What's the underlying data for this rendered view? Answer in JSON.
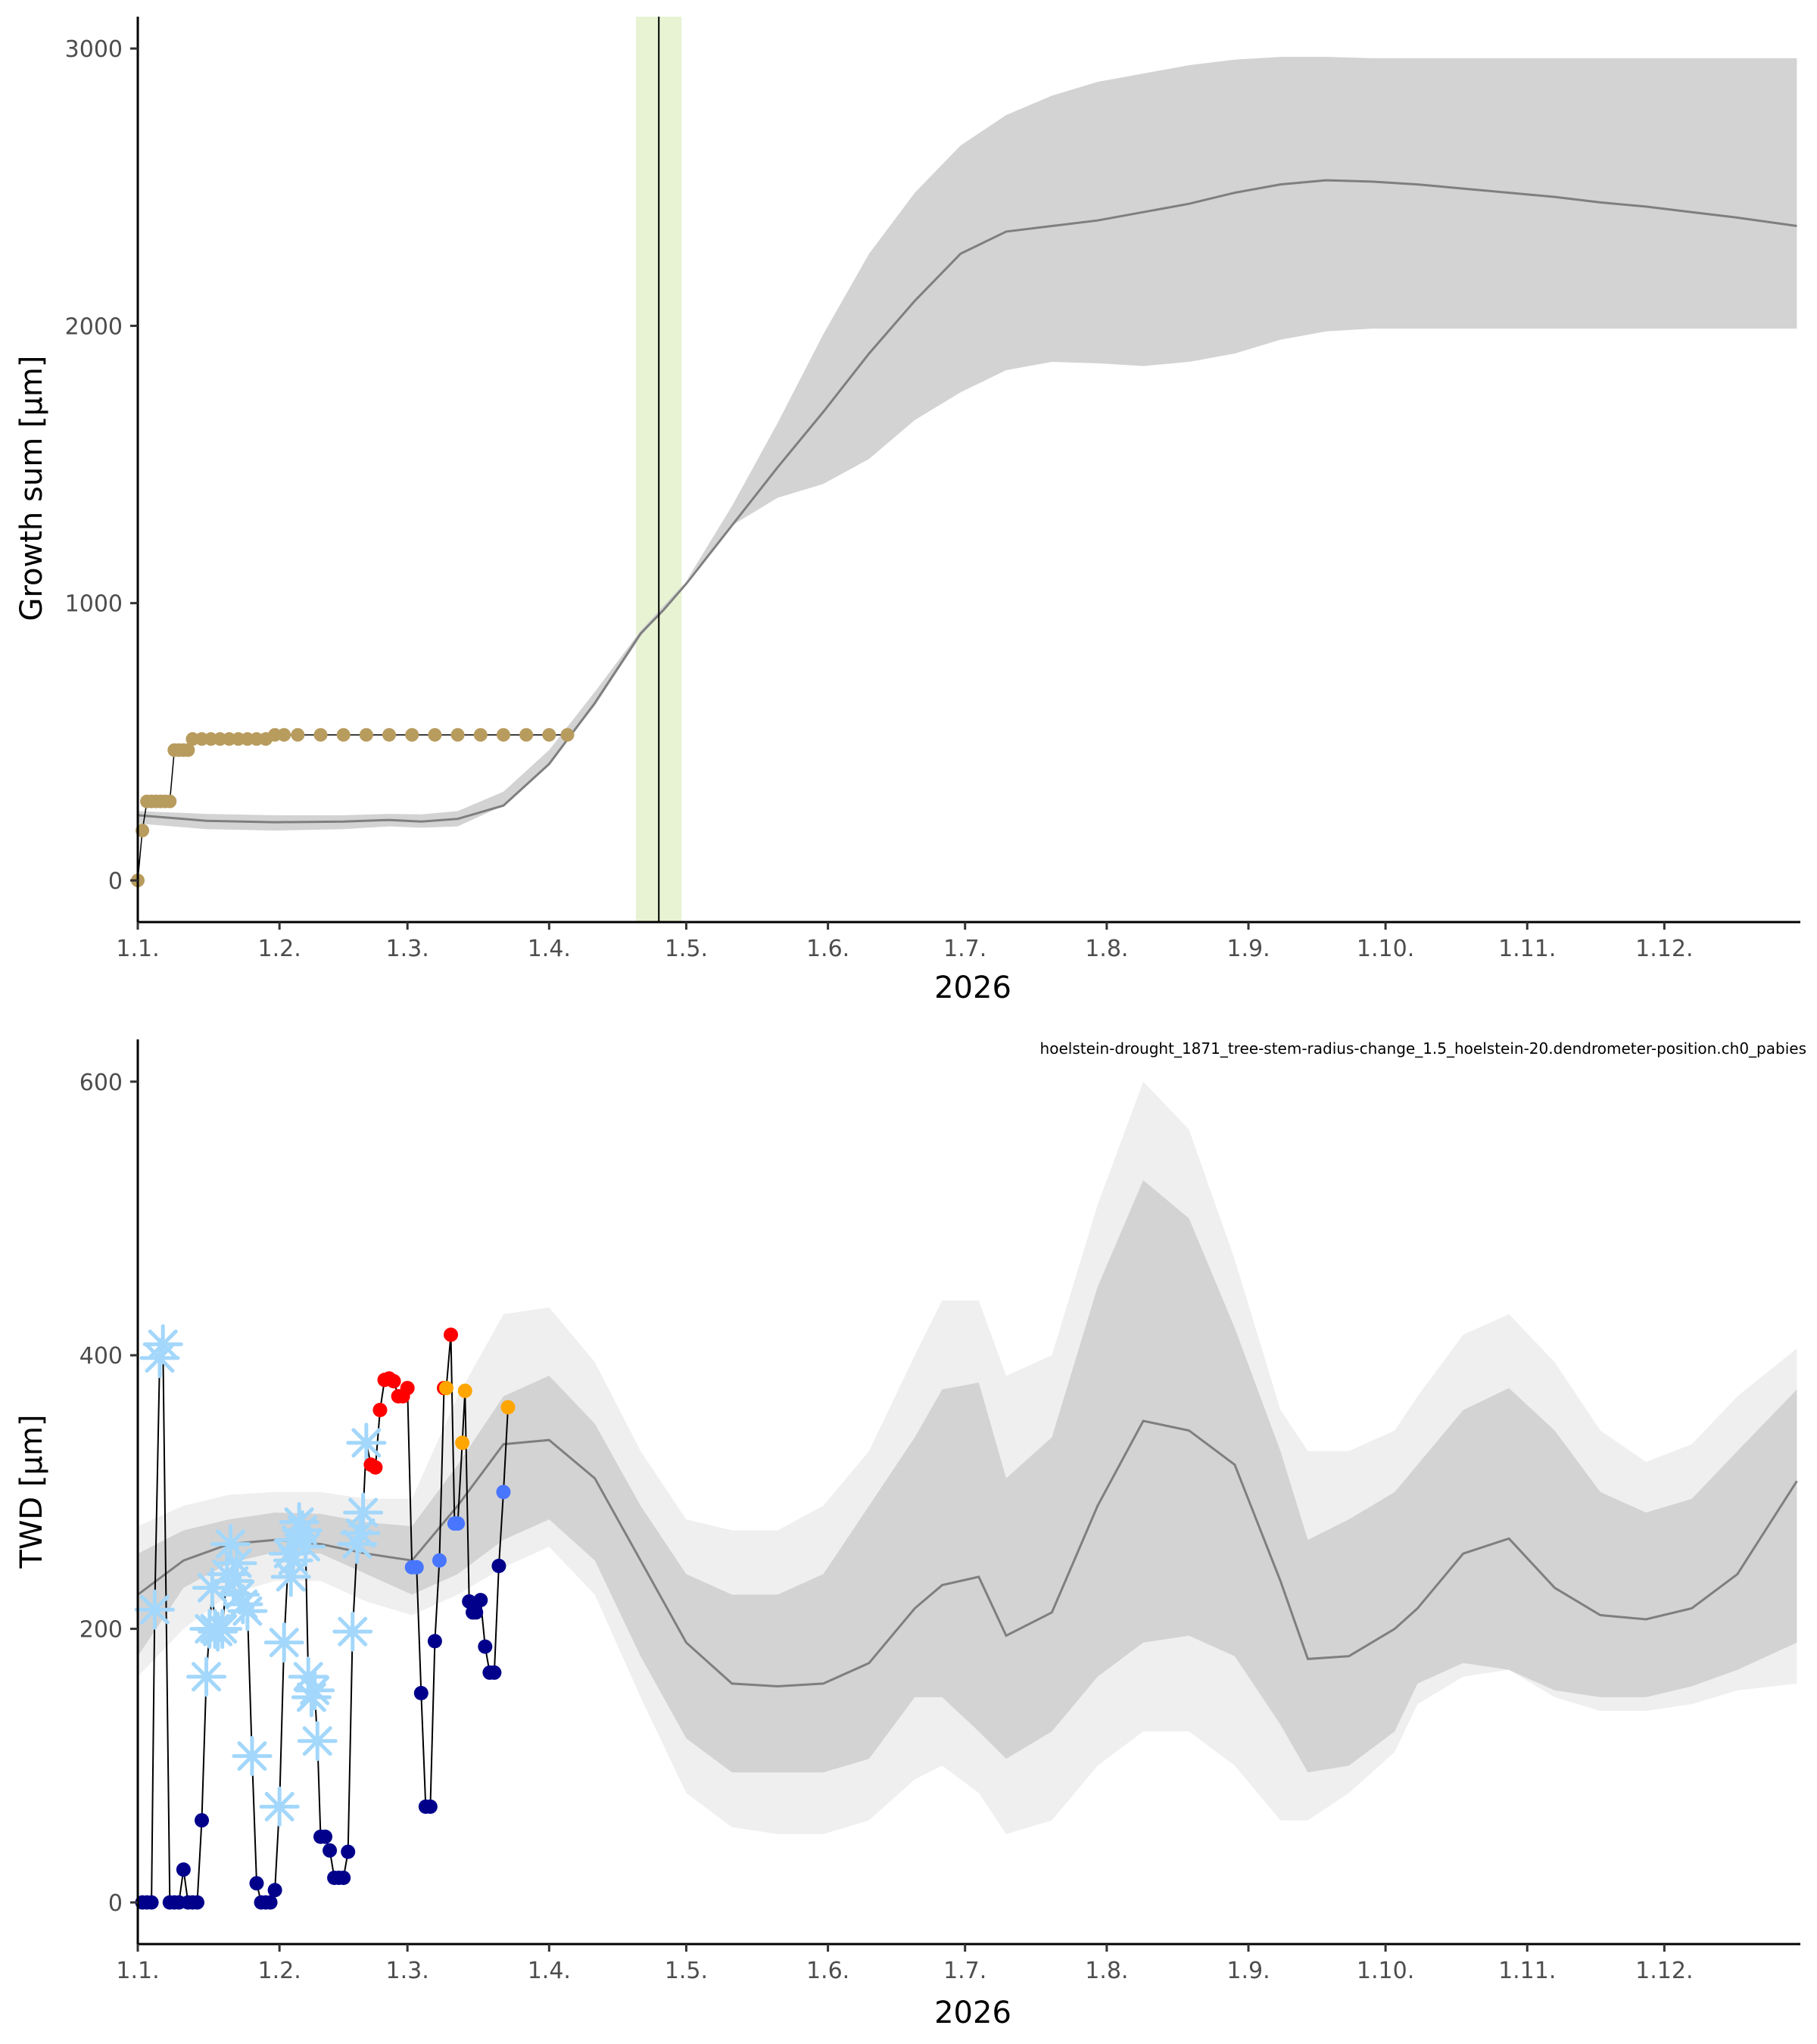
{
  "colors": {
    "growth_band": "#d3d3d3",
    "median_line": "#7f7f7f",
    "growth_points": "#b89c5e",
    "season_band": "#e8f3d4",
    "twd_outer_band": "#efefef",
    "twd_inner_band": "#d3d3d3",
    "frost": "#a3d7fb",
    "navy": "#00008b",
    "blue": "#4876ff",
    "red": "#ff0000",
    "orange": "#ffa500"
  },
  "chart_data": [
    {
      "type": "line",
      "title": "",
      "xlabel": "2026",
      "ylabel": "Growth sum [µm]",
      "x_unit": "day of year",
      "xlim": [
        0,
        363
      ],
      "ylim": [
        -140,
        3110
      ],
      "yticks": [
        0,
        1000,
        2000,
        3000
      ],
      "ytick_labels": [
        "0",
        "1000",
        "2000",
        "3000"
      ],
      "xticks": [
        0,
        31,
        59,
        90,
        120,
        151,
        181,
        212,
        243,
        273,
        304,
        334
      ],
      "xtick_labels": [
        "1.1.",
        "1.2.",
        "1.3.",
        "1.4.",
        "1.5.",
        "1.6.",
        "1.7.",
        "1.8.",
        "1.9.",
        "1.10.",
        "1.11.",
        "1.12."
      ],
      "grid": false,
      "highlight_band": {
        "x_from": 109,
        "x_to": 119
      },
      "marker_line_x": 114,
      "envelope": {
        "x": [
          0,
          15,
          30,
          45,
          55,
          62,
          70,
          80,
          90,
          100,
          110,
          115,
          120,
          130,
          140,
          150,
          160,
          170,
          180,
          190,
          200,
          210,
          220,
          230,
          240,
          250,
          260,
          270,
          280,
          290,
          300,
          310,
          320,
          330,
          340,
          350,
          363
        ],
        "lower": [
          205,
          185,
          180,
          185,
          195,
          190,
          195,
          270,
          420,
          630,
          880,
          980,
          1080,
          1280,
          1380,
          1430,
          1520,
          1660,
          1760,
          1840,
          1870,
          1865,
          1855,
          1870,
          1900,
          1950,
          1980,
          1990,
          1990,
          1990,
          1990,
          1990,
          1990,
          1990,
          1990,
          1990,
          1990
        ],
        "median": [
          235,
          215,
          210,
          212,
          218,
          212,
          222,
          270,
          420,
          640,
          890,
          975,
          1070,
          1280,
          1490,
          1690,
          1900,
          2090,
          2260,
          2340,
          2360,
          2380,
          2410,
          2440,
          2480,
          2510,
          2525,
          2520,
          2510,
          2495,
          2480,
          2465,
          2445,
          2430,
          2410,
          2390,
          2360
        ],
        "upper": [
          250,
          240,
          235,
          235,
          240,
          238,
          250,
          320,
          470,
          680,
          900,
          990,
          1080,
          1350,
          1650,
          1970,
          2260,
          2480,
          2650,
          2760,
          2830,
          2880,
          2910,
          2940,
          2960,
          2970,
          2970,
          2965,
          2965,
          2965,
          2965,
          2965,
          2965,
          2965,
          2965,
          2965,
          2965
        ]
      },
      "series": [
        {
          "name": "growth_sum",
          "points": [
            [
              0,
              0
            ],
            [
              1,
              180
            ],
            [
              2,
              285
            ],
            [
              3,
              285
            ],
            [
              4,
              285
            ],
            [
              5,
              285
            ],
            [
              6,
              285
            ],
            [
              7,
              285
            ],
            [
              8,
              470
            ],
            [
              9,
              470
            ],
            [
              10,
              470
            ],
            [
              11,
              470
            ],
            [
              12,
              510
            ],
            [
              14,
              510
            ],
            [
              16,
              510
            ],
            [
              18,
              510
            ],
            [
              20,
              510
            ],
            [
              22,
              510
            ],
            [
              24,
              510
            ],
            [
              26,
              510
            ],
            [
              28,
              510
            ],
            [
              30,
              525
            ],
            [
              32,
              525
            ],
            [
              35,
              525
            ],
            [
              40,
              525
            ],
            [
              45,
              525
            ],
            [
              50,
              525
            ],
            [
              55,
              525
            ],
            [
              60,
              525
            ],
            [
              65,
              525
            ],
            [
              70,
              525
            ],
            [
              75,
              525
            ],
            [
              80,
              525
            ],
            [
              85,
              525
            ],
            [
              90,
              525
            ],
            [
              94,
              525
            ]
          ]
        }
      ]
    },
    {
      "type": "line",
      "title": "",
      "annotation": "hoelstein-drought_1871_tree-stem-radius-change_1.5_hoelstein-20.dendrometer-position.ch0_pabies",
      "xlabel": "2026",
      "ylabel": "TWD [µm]",
      "x_unit": "day of year",
      "xlim": [
        0,
        363
      ],
      "ylim": [
        -30,
        630
      ],
      "yticks": [
        0,
        200,
        400,
        600
      ],
      "ytick_labels": [
        "0",
        "200",
        "400",
        "600"
      ],
      "xticks": [
        0,
        31,
        59,
        90,
        120,
        151,
        181,
        212,
        243,
        273,
        304,
        334
      ],
      "xtick_labels": [
        "1.1.",
        "1.2.",
        "1.3.",
        "1.4.",
        "1.5.",
        "1.6.",
        "1.7.",
        "1.8.",
        "1.9.",
        "1.10.",
        "1.11.",
        "1.12."
      ],
      "grid": false,
      "envelope": {
        "x": [
          0,
          10,
          20,
          30,
          40,
          50,
          60,
          70,
          80,
          90,
          100,
          110,
          120,
          130,
          140,
          150,
          160,
          170,
          176,
          184,
          190,
          200,
          210,
          220,
          230,
          240,
          250,
          256,
          265,
          275,
          280,
          290,
          300,
          310,
          320,
          330,
          340,
          350,
          363
        ],
        "outer_lower": [
          165,
          200,
          225,
          235,
          235,
          220,
          210,
          225,
          245,
          260,
          225,
          150,
          80,
          55,
          50,
          50,
          60,
          90,
          100,
          80,
          50,
          60,
          100,
          125,
          125,
          100,
          60,
          60,
          80,
          110,
          145,
          165,
          170,
          150,
          140,
          140,
          145,
          155,
          160
        ],
        "inner_lower": [
          180,
          230,
          248,
          256,
          255,
          240,
          225,
          240,
          265,
          280,
          250,
          180,
          120,
          95,
          95,
          95,
          105,
          150,
          150,
          125,
          105,
          125,
          165,
          190,
          195,
          180,
          130,
          95,
          100,
          125,
          160,
          175,
          170,
          155,
          150,
          150,
          158,
          170,
          190
        ],
        "median": [
          225,
          250,
          262,
          265,
          262,
          255,
          250,
          290,
          335,
          338,
          310,
          250,
          190,
          160,
          158,
          160,
          175,
          215,
          232,
          238,
          195,
          212,
          290,
          352,
          345,
          320,
          235,
          178,
          180,
          200,
          215,
          255,
          266,
          230,
          210,
          207,
          215,
          240,
          308
        ],
        "inner_upper": [
          255,
          272,
          280,
          285,
          284,
          278,
          275,
          320,
          370,
          385,
          350,
          290,
          240,
          225,
          225,
          240,
          290,
          340,
          375,
          380,
          310,
          340,
          450,
          528,
          500,
          420,
          330,
          265,
          280,
          300,
          320,
          360,
          376,
          345,
          300,
          285,
          295,
          330,
          375
        ],
        "outer_upper": [
          275,
          290,
          298,
          300,
          300,
          295,
          295,
          370,
          430,
          435,
          395,
          330,
          280,
          272,
          272,
          290,
          330,
          400,
          440,
          440,
          385,
          400,
          510,
          600,
          565,
          470,
          360,
          330,
          330,
          345,
          370,
          415,
          430,
          395,
          345,
          322,
          335,
          370,
          405
        ]
      },
      "series": [
        {
          "name": "twd",
          "points": [
            [
              1,
              0,
              "navy"
            ],
            [
              2,
              0,
              "navy"
            ],
            [
              3,
              0,
              "navy"
            ],
            [
              3.7,
              214,
              "frost"
            ],
            [
              4.8,
              398,
              "frost"
            ],
            [
              5.5,
              408,
              "frost"
            ],
            [
              7,
              0,
              "navy"
            ],
            [
              8,
              0,
              "navy"
            ],
            [
              9,
              0,
              "navy"
            ],
            [
              10,
              24,
              "navy"
            ],
            [
              11,
              0,
              "navy"
            ],
            [
              12,
              0,
              "navy"
            ],
            [
              13,
              0,
              "navy"
            ],
            [
              14,
              60,
              "navy"
            ],
            [
              15,
              165,
              "frost"
            ],
            [
              15.7,
              200,
              "frost"
            ],
            [
              16.3,
              230,
              "frost"
            ],
            [
              16.9,
              200,
              "frost"
            ],
            [
              17.5,
              198,
              "frost"
            ],
            [
              18.5,
              200,
              "frost"
            ],
            [
              19.5,
              240,
              "frost"
            ],
            [
              20.3,
              262,
              "frost"
            ],
            [
              21,
              235,
              "frost"
            ],
            [
              21.7,
              248,
              "frost"
            ],
            [
              22.3,
              225,
              "frost"
            ],
            [
              23,
              218,
              "frost"
            ],
            [
              24,
              213,
              "frost"
            ],
            [
              25,
              107,
              "frost"
            ],
            [
              26,
              14,
              "navy"
            ],
            [
              27,
              0,
              "navy"
            ],
            [
              28,
              0,
              "navy"
            ],
            [
              29,
              0,
              "navy"
            ],
            [
              30,
              9,
              "navy"
            ],
            [
              31,
              70,
              "frost"
            ],
            [
              32,
              190,
              "frost"
            ],
            [
              33,
              255,
              "frost"
            ],
            [
              33.5,
              238,
              "frost"
            ],
            [
              34,
              250,
              "frost"
            ],
            [
              34.7,
              265,
              "frost"
            ],
            [
              35.3,
              278,
              "frost"
            ],
            [
              36,
              272,
              "frost"
            ],
            [
              36.7,
              260,
              "frost"
            ],
            [
              37.3,
              165,
              "frost"
            ],
            [
              38,
              150,
              "frost"
            ],
            [
              38.7,
              155,
              "frost"
            ],
            [
              39.3,
              118,
              "frost"
            ],
            [
              40,
              48,
              "navy"
            ],
            [
              41,
              48,
              "navy"
            ],
            [
              42,
              38,
              "navy"
            ],
            [
              43,
              18,
              "navy"
            ],
            [
              44,
              18,
              "navy"
            ],
            [
              45,
              18,
              "navy"
            ],
            [
              46,
              37,
              "navy"
            ],
            [
              47,
              198,
              "frost"
            ],
            [
              48,
              262,
              "frost"
            ],
            [
              48.7,
              270,
              "frost"
            ],
            [
              49.3,
              285,
              "frost"
            ],
            [
              50,
              336,
              "frost"
            ],
            [
              51,
              320,
              "red"
            ],
            [
              52,
              318,
              "red"
            ],
            [
              53,
              360,
              "red"
            ],
            [
              54,
              382,
              "red"
            ],
            [
              55,
              383,
              "red"
            ],
            [
              56,
              381,
              "red"
            ],
            [
              57,
              370,
              "red"
            ],
            [
              58,
              370,
              "red"
            ],
            [
              59,
              376,
              "red"
            ],
            [
              60,
              245,
              "blue"
            ],
            [
              61,
              245,
              "blue"
            ],
            [
              62,
              153,
              "navy"
            ],
            [
              63,
              70,
              "navy"
            ],
            [
              64,
              70,
              "navy"
            ],
            [
              65,
              191,
              "navy"
            ],
            [
              66,
              250,
              "blue"
            ],
            [
              67,
              376,
              "red"
            ],
            [
              67.5,
              376,
              "orange"
            ],
            [
              68.5,
              415,
              "red"
            ],
            [
              69.3,
              277,
              "blue"
            ],
            [
              70,
              277,
              "blue"
            ],
            [
              71,
              336,
              "orange"
            ],
            [
              71.6,
              374,
              "orange"
            ],
            [
              72.5,
              220,
              "navy"
            ],
            [
              73.3,
              212,
              "navy"
            ],
            [
              74,
              212,
              "navy"
            ],
            [
              75,
              221,
              "navy"
            ],
            [
              76,
              187,
              "navy"
            ],
            [
              77,
              168,
              "navy"
            ],
            [
              78,
              168,
              "navy"
            ],
            [
              79,
              246,
              "navy"
            ],
            [
              80,
              300,
              "blue"
            ],
            [
              81,
              362,
              "orange"
            ]
          ]
        }
      ]
    }
  ]
}
